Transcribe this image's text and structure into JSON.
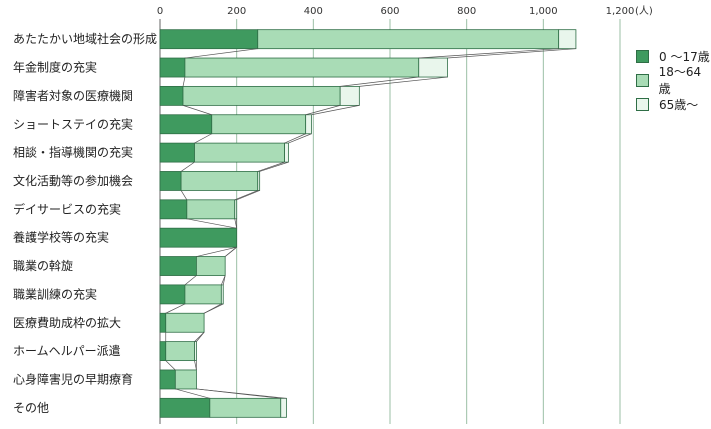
{
  "chart_data": {
    "type": "bar",
    "orientation": "horizontal",
    "stacked": true,
    "xlim": [
      0,
      1200
    ],
    "x_ticks": [
      "0",
      "200",
      "400",
      "600",
      "800",
      "1,000",
      "1,200"
    ],
    "x_unit": "(人)",
    "grid": true,
    "legend_position": "right",
    "categories": [
      "あたたかい地域社会の形成",
      "年金制度の充実",
      "障害者対象の医療機関",
      "ショートステイの充実",
      "相談・指導機関の充実",
      "文化活動等の参加機会",
      "デイサービスの充実",
      "養護学校等の充実",
      "職業の斡旋",
      "職業訓練の充実",
      "医療費助成枠の拡大",
      "ホームヘルパー派遣",
      "心身障害児の早期療育",
      "その他"
    ],
    "series": [
      {
        "name": "0 ～17歳",
        "color": "#3f9a5f",
        "values": [
          255,
          65,
          60,
          135,
          90,
          55,
          70,
          200,
          95,
          65,
          15,
          15,
          40,
          130
        ]
      },
      {
        "name": "18～64歳",
        "color": "#a9dcb6",
        "values": [
          785,
          610,
          410,
          245,
          235,
          200,
          125,
          0,
          75,
          95,
          100,
          75,
          55,
          185
        ]
      },
      {
        "name": "65歳～",
        "color": "#e9f6ec",
        "values": [
          45,
          75,
          50,
          15,
          10,
          5,
          5,
          0,
          0,
          5,
          0,
          5,
          0,
          15
        ]
      }
    ]
  }
}
